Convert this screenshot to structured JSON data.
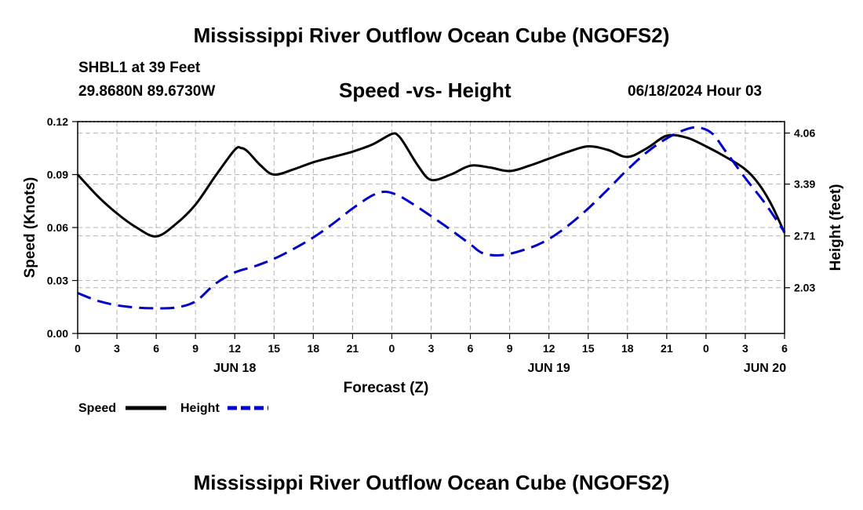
{
  "header": {
    "title": "Mississippi River Outflow Ocean Cube (NGOFS2)",
    "station": "SHBL1 at 39 Feet",
    "coords": "29.8680N  89.6730W",
    "datetime": "06/18/2024 Hour 03"
  },
  "footer": {
    "title": "Mississippi River Outflow Ocean Cube (NGOFS2)"
  },
  "chart_data": {
    "type": "line",
    "title": "Speed -vs- Height",
    "xlabel": "Forecast (Z)",
    "ylabel": "Speed (Knots)",
    "y2label": "Height (feet)",
    "xlim": [
      0,
      54
    ],
    "ylim": [
      0,
      0.12
    ],
    "y2lim": [
      1.43,
      4.21
    ],
    "x_ticks": [
      0,
      3,
      6,
      9,
      12,
      15,
      18,
      21,
      24,
      27,
      30,
      33,
      36,
      39,
      42,
      45,
      48,
      51,
      54
    ],
    "x_tick_labels": [
      "0",
      "3",
      "6",
      "9",
      "12",
      "15",
      "18",
      "21",
      "0",
      "3",
      "6",
      "9",
      "12",
      "15",
      "18",
      "21",
      "0",
      "3",
      "6"
    ],
    "y_ticks": [
      0,
      0.03,
      0.06,
      0.09,
      0.12
    ],
    "y_tick_labels": [
      "0.00",
      "0.03",
      "0.06",
      "0.09",
      "0.12"
    ],
    "y2_ticks": [
      2.03,
      2.71,
      3.39,
      4.06
    ],
    "y2_tick_labels": [
      "2.03",
      "2.71",
      "3.39",
      "4.06"
    ],
    "date_labels": [
      {
        "x": 12,
        "label": "JUN 18"
      },
      {
        "x": 36,
        "label": "JUN 19"
      },
      {
        "x": 52.5,
        "label": "JUN 20"
      }
    ],
    "grid": true,
    "legend_position": "bottom-left",
    "series": [
      {
        "name": "Speed",
        "axis": "left",
        "color": "#000000",
        "dashed": false,
        "x": [
          0,
          1.5,
          3,
          4.5,
          6,
          7.5,
          9,
          10.5,
          12,
          12.5,
          13,
          14,
          15,
          16.5,
          18,
          19.5,
          21,
          22.5,
          24,
          24.5,
          25,
          26,
          27,
          28.5,
          30,
          31.5,
          33,
          34.5,
          36,
          37.5,
          39,
          40.5,
          42,
          43.5,
          45,
          46.5,
          48,
          49.5,
          51,
          52,
          53,
          54
        ],
        "values": [
          0.09,
          0.078,
          0.068,
          0.06,
          0.055,
          0.062,
          0.073,
          0.089,
          0.104,
          0.105,
          0.103,
          0.095,
          0.09,
          0.093,
          0.097,
          0.1,
          0.103,
          0.107,
          0.113,
          0.112,
          0.107,
          0.095,
          0.087,
          0.09,
          0.095,
          0.094,
          0.092,
          0.095,
          0.099,
          0.103,
          0.106,
          0.104,
          0.1,
          0.105,
          0.112,
          0.111,
          0.106,
          0.1,
          0.093,
          0.085,
          0.073,
          0.057
        ]
      },
      {
        "name": "Height",
        "axis": "right",
        "color": "#0000cc",
        "dashed": true,
        "x": [
          0,
          1.5,
          3,
          4.5,
          6,
          7.5,
          9,
          10.5,
          12,
          13.5,
          15,
          16.5,
          18,
          19.5,
          21,
          22.5,
          23.5,
          24.5,
          25.5,
          27,
          28.5,
          30,
          31,
          32.5,
          34.5,
          36,
          37.5,
          39,
          40.5,
          42,
          43.5,
          45,
          46.5,
          47.5,
          48.5,
          49.5,
          51,
          52.5,
          54
        ],
        "values": [
          1.96,
          1.86,
          1.8,
          1.77,
          1.76,
          1.77,
          1.85,
          2.08,
          2.23,
          2.31,
          2.41,
          2.54,
          2.69,
          2.87,
          3.07,
          3.24,
          3.29,
          3.24,
          3.14,
          2.97,
          2.79,
          2.6,
          2.48,
          2.46,
          2.55,
          2.67,
          2.85,
          3.07,
          3.32,
          3.58,
          3.81,
          3.99,
          4.11,
          4.13,
          4.05,
          3.82,
          3.47,
          3.14,
          2.76
        ]
      }
    ]
  }
}
